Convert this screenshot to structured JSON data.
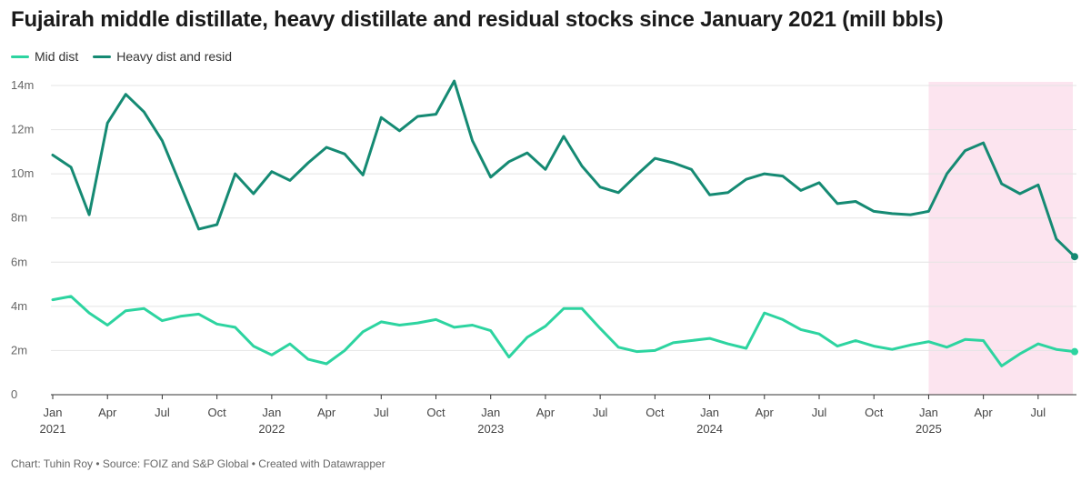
{
  "chart_data": {
    "type": "line",
    "title": "Fujairah middle distillate, heavy distillate and residual stocks since January 2021 (mill bbls)",
    "footer": "Chart: Tuhin Roy • Source: FOIZ and S&P Global • Created with Datawrapper",
    "ylim": [
      0,
      14
    ],
    "y_ticks": [
      0,
      2,
      4,
      6,
      8,
      10,
      12,
      14
    ],
    "y_tick_labels": [
      "0",
      "2m",
      "4m",
      "6m",
      "8m",
      "10m",
      "12m",
      "14m"
    ],
    "x_ticks": [
      {
        "month_index": 0,
        "label": "Jan",
        "year": "2021"
      },
      {
        "month_index": 3,
        "label": "Apr",
        "year": ""
      },
      {
        "month_index": 6,
        "label": "Jul",
        "year": ""
      },
      {
        "month_index": 9,
        "label": "Oct",
        "year": ""
      },
      {
        "month_index": 12,
        "label": "Jan",
        "year": "2022"
      },
      {
        "month_index": 15,
        "label": "Apr",
        "year": ""
      },
      {
        "month_index": 18,
        "label": "Jul",
        "year": ""
      },
      {
        "month_index": 21,
        "label": "Oct",
        "year": ""
      },
      {
        "month_index": 24,
        "label": "Jan",
        "year": "2023"
      },
      {
        "month_index": 27,
        "label": "Apr",
        "year": ""
      },
      {
        "month_index": 30,
        "label": "Jul",
        "year": ""
      },
      {
        "month_index": 33,
        "label": "Oct",
        "year": ""
      },
      {
        "month_index": 36,
        "label": "Jan",
        "year": "2024"
      },
      {
        "month_index": 39,
        "label": "Apr",
        "year": ""
      },
      {
        "month_index": 42,
        "label": "Jul",
        "year": ""
      },
      {
        "month_index": 45,
        "label": "Oct",
        "year": ""
      },
      {
        "month_index": 48,
        "label": "Jan",
        "year": "2025"
      },
      {
        "month_index": 51,
        "label": "Apr",
        "year": ""
      },
      {
        "month_index": 54,
        "label": "Jul",
        "year": ""
      }
    ],
    "x_range_month_index": [
      0,
      56
    ],
    "highlight_range_month_index": [
      48,
      56
    ],
    "highlight_color": "#fce4ef",
    "series": [
      {
        "name": "Mid dist",
        "color": "#2dd4a0",
        "values": [
          4.3,
          4.45,
          3.7,
          3.15,
          3.8,
          3.9,
          3.35,
          3.55,
          3.65,
          3.2,
          3.05,
          2.2,
          1.8,
          2.3,
          1.6,
          1.4,
          2.0,
          2.85,
          3.3,
          3.15,
          3.25,
          3.4,
          3.05,
          3.15,
          2.9,
          1.7,
          2.6,
          3.1,
          3.9,
          3.9,
          3.0,
          2.15,
          1.95,
          2.0,
          2.35,
          2.45,
          2.55,
          2.3,
          2.1,
          3.7,
          3.4,
          2.95,
          2.75,
          2.2,
          2.45,
          2.2,
          2.05,
          2.25,
          2.4,
          2.15,
          2.5,
          2.45,
          1.3,
          1.85,
          2.3,
          2.05,
          1.95
        ]
      },
      {
        "name": "Heavy dist and resid",
        "color": "#158a73",
        "values": [
          10.85,
          10.3,
          8.15,
          12.3,
          13.6,
          12.8,
          11.5,
          9.5,
          7.5,
          7.7,
          10.0,
          9.1,
          10.1,
          9.7,
          10.5,
          11.2,
          10.9,
          9.95,
          12.55,
          11.95,
          12.6,
          12.7,
          14.2,
          11.5,
          9.85,
          10.55,
          10.95,
          10.2,
          11.7,
          10.35,
          9.4,
          9.15,
          9.95,
          10.7,
          10.5,
          10.2,
          9.05,
          9.15,
          9.75,
          10.0,
          9.9,
          9.25,
          9.6,
          8.65,
          8.75,
          8.3,
          8.2,
          8.15,
          8.3,
          10.0,
          11.05,
          11.4,
          9.55,
          9.1,
          9.5,
          7.05,
          6.25
        ]
      }
    ]
  }
}
